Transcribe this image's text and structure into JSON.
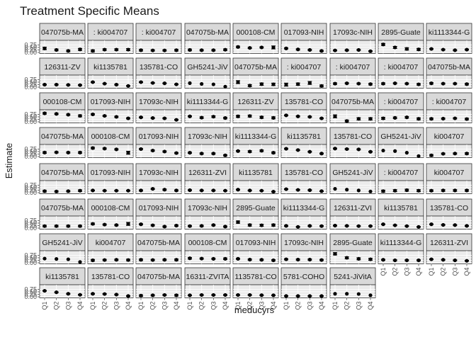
{
  "chart_data": {
    "type": "scatter",
    "title": "Treatment Specific Means",
    "xlabel": "meducyrs",
    "ylabel": "Estimate",
    "categories": [
      "Q1",
      "Q2",
      "Q3",
      "Q4"
    ],
    "y_ticks": [
      "0.00",
      "0.25",
      "0.50",
      "0.75"
    ],
    "ylim": [
      0,
      1.1
    ],
    "grid": true,
    "panels": [
      {
        "label": "047075b-MA",
        "values": [
          0.4,
          0.25,
          0.15,
          0.3
        ],
        "errors": [
          0.12,
          0.08,
          0.08,
          0.1
        ]
      },
      {
        "label": ": ki004707",
        "values": [
          0.15,
          0.28,
          0.28,
          0.28
        ],
        "errors": [
          0.1,
          0.08,
          0.08,
          0.1
        ]
      },
      {
        "label": ": ki004707",
        "values": [
          0.22,
          0.2,
          0.2,
          0.22
        ],
        "errors": [
          0.08,
          0.06,
          0.06,
          0.08
        ]
      },
      {
        "label": "047075b-MA",
        "values": [
          0.25,
          0.22,
          0.22,
          0.27
        ],
        "errors": [
          0.08,
          0.06,
          0.06,
          0.08
        ]
      },
      {
        "label": "000108-CM",
        "values": [
          0.55,
          0.45,
          0.5,
          0.5
        ],
        "errors": [
          0.08,
          0.06,
          0.06,
          0.15
        ]
      },
      {
        "label": "017093-NIH",
        "values": [
          0.4,
          0.3,
          0.25,
          0.15
        ],
        "errors": [
          0.06,
          0.06,
          0.06,
          0.06
        ]
      },
      {
        "label": "17093c-NIH",
        "values": [
          0.2,
          0.22,
          0.25,
          0.12
        ],
        "errors": [
          0.05,
          0.05,
          0.05,
          0.05
        ]
      },
      {
        "label": "2895-Guate",
        "values": [
          0.8,
          0.5,
          0.35,
          0.3
        ],
        "errors": [
          0.1,
          0.1,
          0.12,
          0.1
        ]
      },
      {
        "label": "ki1113344-G",
        "values": [
          0.35,
          0.28,
          0.22,
          0.28
        ],
        "errors": [
          0.05,
          0.05,
          0.05,
          0.05
        ]
      },
      {
        "label": "126311-ZV",
        "values": [
          0.25,
          0.25,
          0.22,
          0.2
        ],
        "errors": [
          0.04,
          0.04,
          0.04,
          0.04
        ]
      },
      {
        "label": "ki1135781",
        "values": [
          0.5,
          0.35,
          0.25,
          0.12
        ],
        "errors": [
          0.04,
          0.04,
          0.04,
          0.04
        ]
      },
      {
        "label": "135781-CO",
        "values": [
          0.5,
          0.42,
          0.38,
          0.28
        ],
        "errors": [
          0.04,
          0.04,
          0.04,
          0.04
        ]
      },
      {
        "label": "GH5241-JiV",
        "values": [
          0.4,
          0.32,
          0.28,
          0.05
        ],
        "errors": [
          0,
          0,
          0,
          0
        ]
      },
      {
        "label": "047075b-MA",
        "values": [
          0.5,
          0.15,
          0.3,
          0.28
        ],
        "errors": [
          0.15,
          0.1,
          0.12,
          0.12
        ]
      },
      {
        "label": ": ki004707",
        "values": [
          0.25,
          0.3,
          0.42,
          0.12
        ],
        "errors": [
          0.15,
          0.12,
          0.15,
          0.1
        ]
      },
      {
        "label": ": ki004707",
        "values": [
          0.35,
          0.38,
          0.35,
          0.3
        ],
        "errors": [
          0.08,
          0.06,
          0.06,
          0.08
        ]
      },
      {
        "label": ": ki004707",
        "values": [
          0.35,
          0.38,
          0.35,
          0.28
        ],
        "errors": [
          0.08,
          0.06,
          0.06,
          0.08
        ]
      },
      {
        "label": "047075b-MA",
        "values": [
          0.38,
          0.35,
          0.35,
          0.3
        ],
        "errors": [
          0.08,
          0.06,
          0.06,
          0.08
        ]
      },
      {
        "label": "000108-CM",
        "values": [
          0.85,
          0.8,
          0.72,
          0.6
        ],
        "errors": [
          0.08,
          0.06,
          0.06,
          0.1
        ]
      },
      {
        "label": "017093-NIH",
        "values": [
          0.75,
          0.6,
          0.5,
          0.35
        ],
        "errors": [
          0.06,
          0.06,
          0.06,
          0.06
        ]
      },
      {
        "label": "17093c-NIH",
        "values": [
          0.45,
          0.38,
          0.35,
          0.2
        ],
        "errors": [
          0.05,
          0.05,
          0.05,
          0.05
        ]
      },
      {
        "label": "ki1113344-G",
        "values": [
          0.55,
          0.42,
          0.52,
          0.38
        ],
        "errors": [
          0.05,
          0.08,
          0.08,
          0.08
        ]
      },
      {
        "label": "126311-ZV",
        "values": [
          0.55,
          0.58,
          0.45,
          0.4
        ],
        "errors": [
          0.1,
          0.1,
          0.1,
          0.1
        ]
      },
      {
        "label": "135781-CO",
        "values": [
          0.65,
          0.55,
          0.5,
          0.35
        ],
        "errors": [
          0.05,
          0.05,
          0.05,
          0.05
        ]
      },
      {
        "label": "047075b-MA",
        "values": [
          0.55,
          0.08,
          0.3,
          0.3
        ],
        "errors": [
          0.15,
          0.1,
          0.12,
          0.12
        ]
      },
      {
        "label": ": ki004707",
        "values": [
          0.35,
          0.4,
          0.45,
          0.3
        ],
        "errors": [
          0.1,
          0.08,
          0.08,
          0.1
        ]
      },
      {
        "label": ": ki004707",
        "values": [
          0.3,
          0.32,
          0.35,
          0.28
        ],
        "errors": [
          0.08,
          0.06,
          0.06,
          0.08
        ]
      },
      {
        "label": "047075b-MA",
        "values": [
          0.4,
          0.42,
          0.4,
          0.4
        ],
        "errors": [
          0.08,
          0.06,
          0.06,
          0.08
        ]
      },
      {
        "label": "000108-CM",
        "values": [
          0.85,
          0.8,
          0.72,
          0.38
        ],
        "errors": [
          0.08,
          0.06,
          0.06,
          0.15
        ]
      },
      {
        "label": "017093-NIH",
        "values": [
          0.75,
          0.6,
          0.5,
          0.35
        ],
        "errors": [
          0.06,
          0.06,
          0.06,
          0.06
        ]
      },
      {
        "label": "17093c-NIH",
        "values": [
          0.38,
          0.3,
          0.3,
          0.12
        ],
        "errors": [
          0.06,
          0.06,
          0.06,
          0.06
        ]
      },
      {
        "label": "ki1113344-G",
        "values": [
          0.55,
          0.5,
          0.58,
          0.38
        ],
        "errors": [
          0.05,
          0.08,
          0.08,
          0.08
        ]
      },
      {
        "label": "ki1135781",
        "values": [
          0.78,
          0.65,
          0.48,
          0.3
        ],
        "errors": [
          0.05,
          0.05,
          0.05,
          0.05
        ]
      },
      {
        "label": "135781-CO",
        "values": [
          0.8,
          0.75,
          0.72,
          0.48
        ],
        "errors": [
          0.05,
          0.05,
          0.05,
          0.05
        ]
      },
      {
        "label": "GH5241-JiV",
        "values": [
          0.6,
          0.55,
          0.38,
          0.05
        ],
        "errors": [
          0,
          0,
          0,
          0
        ]
      },
      {
        "label": "ki004707",
        "values": [
          0.12,
          0.28,
          0.3,
          0.3
        ],
        "errors": [
          0.08,
          0.06,
          0.06,
          0.08
        ]
      },
      {
        "label": "047075b-MA",
        "values": [
          0.15,
          0.12,
          0.15,
          0.2
        ],
        "errors": [
          0.08,
          0.06,
          0.06,
          0.08
        ]
      },
      {
        "label": "017093-NIH",
        "values": [
          0.22,
          0.2,
          0.2,
          0.2
        ],
        "errors": [
          0.04,
          0.04,
          0.04,
          0.04
        ]
      },
      {
        "label": "17093c-NIH",
        "values": [
          0.22,
          0.38,
          0.3,
          0.22
        ],
        "errors": [
          0.06,
          0.06,
          0.06,
          0.06
        ]
      },
      {
        "label": "126311-ZVI",
        "values": [
          0.25,
          0.22,
          0.22,
          0.2
        ],
        "errors": [
          0.04,
          0.04,
          0.04,
          0.04
        ]
      },
      {
        "label": "ki1135781",
        "values": [
          0.3,
          0.22,
          0.2,
          0.1
        ],
        "errors": [
          0.04,
          0.04,
          0.04,
          0.04
        ]
      },
      {
        "label": "135781-CO",
        "values": [
          0.35,
          0.28,
          0.25,
          0.15
        ],
        "errors": [
          0.04,
          0.04,
          0.04,
          0.04
        ]
      },
      {
        "label": "GH5241-JiV",
        "values": [
          0.38,
          0.3,
          0.22,
          0.12
        ],
        "errors": [
          0,
          0,
          0,
          0
        ]
      },
      {
        "label": ": ki004707",
        "values": [
          0.15,
          0.2,
          0.25,
          0.2
        ],
        "errors": [
          0.1,
          0.1,
          0.1,
          0.1
        ]
      },
      {
        "label": "ki004707",
        "values": [
          0.2,
          0.22,
          0.22,
          0.22
        ],
        "errors": [
          0.08,
          0.08,
          0.08,
          0.08
        ]
      },
      {
        "label": "047075b-MA",
        "values": [
          0.2,
          0.2,
          0.2,
          0.2
        ],
        "errors": [
          0.08,
          0.08,
          0.08,
          0.08
        ]
      },
      {
        "label": "000108-CM",
        "values": [
          0.42,
          0.35,
          0.3,
          0.42
        ],
        "errors": [
          0.08,
          0.06,
          0.06,
          0.15
        ]
      },
      {
        "label": "017093-NIH",
        "values": [
          0.38,
          0.28,
          0.15,
          0.25
        ],
        "errors": [
          0.06,
          0.06,
          0.06,
          0.06
        ]
      },
      {
        "label": "17093c-NIH",
        "values": [
          0.2,
          0.22,
          0.3,
          0.15
        ],
        "errors": [
          0.06,
          0.06,
          0.06,
          0.06
        ]
      },
      {
        "label": "2895-Guate",
        "values": [
          0.6,
          0.3,
          0.28,
          0.3
        ],
        "errors": [
          0.12,
          0.1,
          0.1,
          0.1
        ]
      },
      {
        "label": "ki1113344-G",
        "values": [
          0.22,
          0.12,
          0.22,
          0.2
        ],
        "errors": [
          0.05,
          0.05,
          0.05,
          0.05
        ]
      },
      {
        "label": "126311-ZVI",
        "values": [
          0.25,
          0.22,
          0.2,
          0.2
        ],
        "errors": [
          0.04,
          0.04,
          0.04,
          0.04
        ]
      },
      {
        "label": "ki1135781",
        "values": [
          0.38,
          0.28,
          0.2,
          0.12
        ],
        "errors": [
          0.04,
          0.04,
          0.04,
          0.04
        ]
      },
      {
        "label": "135781-CO",
        "values": [
          0.38,
          0.32,
          0.3,
          0.22
        ],
        "errors": [
          0.04,
          0.04,
          0.04,
          0.04
        ]
      },
      {
        "label": "GH5241-JiV",
        "values": [
          0.42,
          0.38,
          0.35,
          0.08
        ],
        "errors": [
          0,
          0,
          0,
          0
        ]
      },
      {
        "label": "ki004707",
        "values": [
          0.25,
          0.28,
          0.3,
          0.28
        ],
        "errors": [
          0.08,
          0.06,
          0.06,
          0.08
        ]
      },
      {
        "label": "047075b-MA",
        "values": [
          0.3,
          0.28,
          0.3,
          0.3
        ],
        "errors": [
          0.08,
          0.06,
          0.06,
          0.08
        ]
      },
      {
        "label": "000108-CM",
        "values": [
          0.45,
          0.42,
          0.4,
          0.4
        ],
        "errors": [
          0.08,
          0.06,
          0.06,
          0.08
        ]
      },
      {
        "label": "017093-NIH",
        "values": [
          0.4,
          0.32,
          0.3,
          0.25
        ],
        "errors": [
          0.06,
          0.06,
          0.06,
          0.06
        ]
      },
      {
        "label": "17093c-NIH",
        "values": [
          0.35,
          0.32,
          0.32,
          0.28
        ],
        "errors": [
          0.06,
          0.06,
          0.06,
          0.06
        ]
      },
      {
        "label": "2895-Guate",
        "values": [
          0.9,
          0.5,
          0.4,
          0.35
        ],
        "errors": [
          0.12,
          0.1,
          0.1,
          0.1
        ]
      },
      {
        "label": "ki1113344-G",
        "values": [
          0.3,
          0.25,
          0.25,
          0.25
        ],
        "errors": [
          0.05,
          0.05,
          0.05,
          0.05
        ]
      },
      {
        "label": "126311-ZVI",
        "values": [
          0.35,
          0.3,
          0.25,
          0.2
        ],
        "errors": [
          0.04,
          0.04,
          0.04,
          0.04
        ]
      },
      {
        "label": "ki1135781",
        "values": [
          0.6,
          0.45,
          0.3,
          0.2
        ],
        "errors": [
          0.04,
          0.04,
          0.04,
          0.04
        ]
      },
      {
        "label": "135781-CO",
        "values": [
          0.3,
          0.28,
          0.22,
          0.08
        ],
        "errors": [
          0.04,
          0.04,
          0.04,
          0.04
        ]
      },
      {
        "label": "047075b-MA",
        "values": [
          0.12,
          0.15,
          0.18,
          0.15
        ],
        "errors": [
          0.08,
          0.06,
          0.06,
          0.08
        ]
      },
      {
        "label": "16311-ZVITA",
        "values": [
          0.15,
          0.18,
          0.18,
          0.18
        ],
        "errors": [
          0.04,
          0.04,
          0.04,
          0.04
        ]
      },
      {
        "label": "1135781-CO",
        "values": [
          0.18,
          0.18,
          0.16,
          0.15
        ],
        "errors": [
          0.04,
          0.04,
          0.04,
          0.04
        ]
      },
      {
        "label": "5781-COHO",
        "values": [
          0.08,
          0.08,
          0.08,
          0.08
        ],
        "errors": [
          0.03,
          0.03,
          0.03,
          0.03
        ]
      },
      {
        "label": "5241-JiVitA",
        "values": [
          0.3,
          0.3,
          0.28,
          0.15
        ],
        "errors": [
          0,
          0,
          0,
          0
        ]
      }
    ]
  }
}
